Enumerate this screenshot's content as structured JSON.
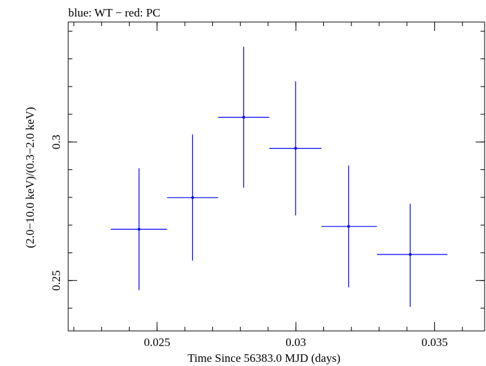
{
  "chart_data": {
    "type": "scatter",
    "title": "blue: WT − red: PC",
    "xlabel": "Time Since 56383.0 MJD (days)",
    "ylabel": "(2.0−10.0 keV)/(0.3−2.0 keV)",
    "xlim": [
      0.0218,
      0.0368
    ],
    "ylim": [
      0.2318,
      0.3433
    ],
    "xticks": [
      {
        "value": 0.025,
        "label": "0.025"
      },
      {
        "value": 0.03,
        "label": "0.03"
      },
      {
        "value": 0.035,
        "label": "0.035"
      }
    ],
    "yticks": [
      {
        "value": 0.25,
        "label": "0.25"
      },
      {
        "value": 0.3,
        "label": "0.3"
      }
    ],
    "series": [
      {
        "name": "WT",
        "color": "#0000ff",
        "points": [
          {
            "x": 0.02435,
            "xlo": 0.02333,
            "xhi": 0.02536,
            "y": 0.2685,
            "ylo": 0.2465,
            "yhi": 0.2905
          },
          {
            "x": 0.02628,
            "xlo": 0.02536,
            "xhi": 0.0272,
            "y": 0.2799,
            "ylo": 0.2572,
            "yhi": 0.3027
          },
          {
            "x": 0.02812,
            "xlo": 0.0272,
            "xhi": 0.02904,
            "y": 0.3089,
            "ylo": 0.2835,
            "yhi": 0.3344
          },
          {
            "x": 0.02999,
            "xlo": 0.02904,
            "xhi": 0.03092,
            "y": 0.2977,
            "ylo": 0.2735,
            "yhi": 0.3219
          },
          {
            "x": 0.0319,
            "xlo": 0.03092,
            "xhi": 0.03292,
            "y": 0.2695,
            "ylo": 0.2475,
            "yhi": 0.2915
          },
          {
            "x": 0.03412,
            "xlo": 0.03292,
            "xhi": 0.03546,
            "y": 0.2594,
            "ylo": 0.2405,
            "yhi": 0.2777
          }
        ]
      }
    ]
  }
}
